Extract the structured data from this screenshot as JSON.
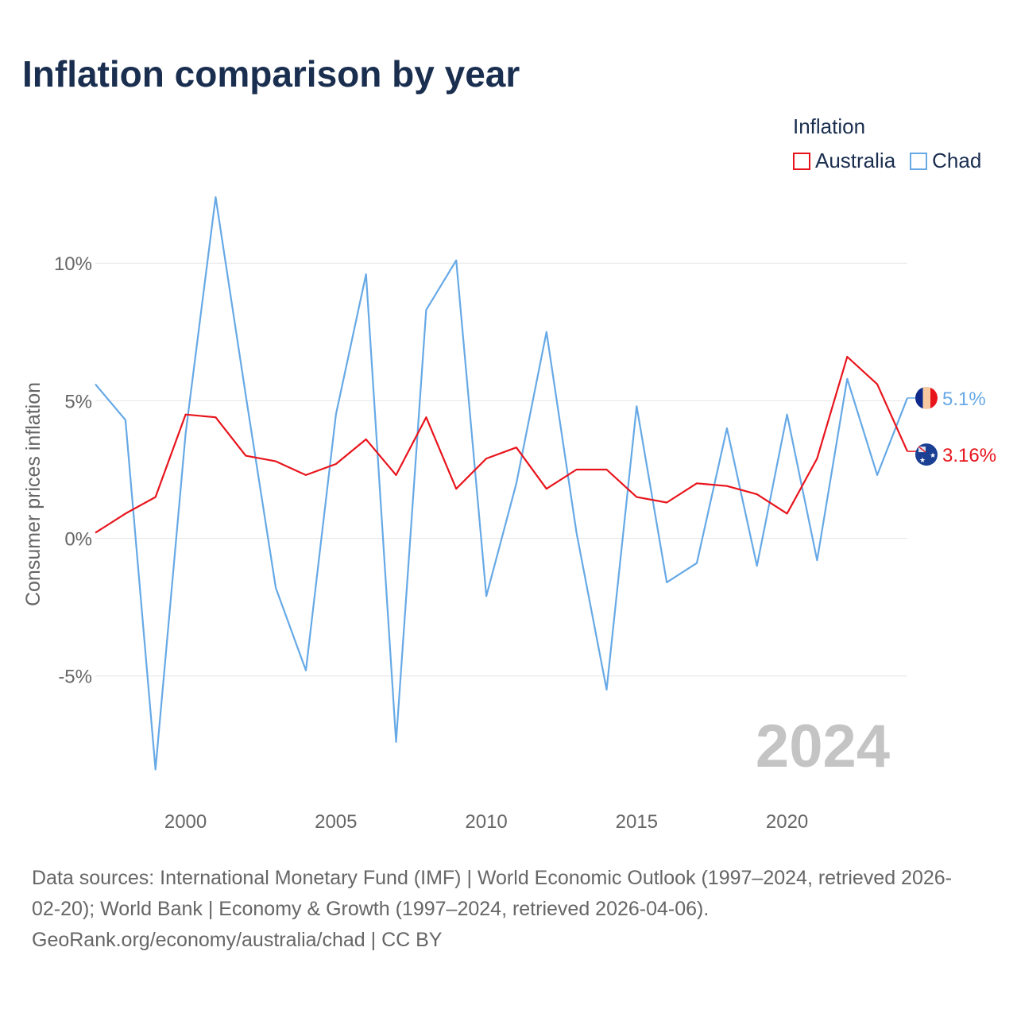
{
  "title": "Inflation comparison by year",
  "legend": {
    "title": "Inflation",
    "items": [
      {
        "label": "Australia",
        "color": "#e8141c"
      },
      {
        "label": "Chad",
        "color": "#66a9e6"
      }
    ]
  },
  "year_label": "2024",
  "chart_data": {
    "type": "line",
    "title": "Inflation comparison by year",
    "xlabel": "",
    "ylabel": "Consumer prices inflation",
    "xlim": [
      1997,
      2024
    ],
    "ylim": [
      -9.6,
      13.5
    ],
    "xticks": [
      2000,
      2005,
      2010,
      2015,
      2020
    ],
    "xtick_labels": [
      "2000",
      "2005",
      "2010",
      "2015",
      "2020"
    ],
    "yticks": [
      -5,
      0,
      5,
      10
    ],
    "ytick_labels": [
      "-5%",
      "0%",
      "5%",
      "10%"
    ],
    "grid": true,
    "legend_position": "top-right",
    "x": [
      1997,
      1998,
      1999,
      2000,
      2001,
      2002,
      2003,
      2004,
      2005,
      2006,
      2007,
      2008,
      2009,
      2010,
      2011,
      2012,
      2013,
      2014,
      2015,
      2016,
      2017,
      2018,
      2019,
      2020,
      2021,
      2022,
      2023,
      2024
    ],
    "series": [
      {
        "name": "Australia",
        "color": "#e8141c",
        "values": [
          0.2,
          0.9,
          1.5,
          4.5,
          4.4,
          3.0,
          2.8,
          2.3,
          2.7,
          3.6,
          2.3,
          4.4,
          1.8,
          2.9,
          3.3,
          1.8,
          2.5,
          2.5,
          1.5,
          1.3,
          2.0,
          1.9,
          1.6,
          0.9,
          2.9,
          6.6,
          5.6,
          3.16
        ],
        "end_label": "3.16%"
      },
      {
        "name": "Chad",
        "color": "#66a9e6",
        "values": [
          5.6,
          4.3,
          -8.4,
          3.8,
          12.4,
          5.2,
          -1.8,
          -4.8,
          4.5,
          9.6,
          -7.4,
          8.3,
          10.1,
          -2.1,
          2.0,
          7.5,
          0.2,
          -5.5,
          4.8,
          -1.6,
          -0.9,
          4.0,
          -1.0,
          4.5,
          -0.8,
          5.8,
          2.3,
          5.1
        ],
        "end_label": "5.1%"
      }
    ]
  },
  "source_lines": [
    "Data sources: International Monetary Fund (IMF) | World Economic Outlook (1997–2024, retrieved 2026-",
    "02-20); World Bank | Economy & Growth (1997–2024, retrieved 2026-04-06).",
    "GeoRank.org/economy/australia/chad | CC BY"
  ]
}
